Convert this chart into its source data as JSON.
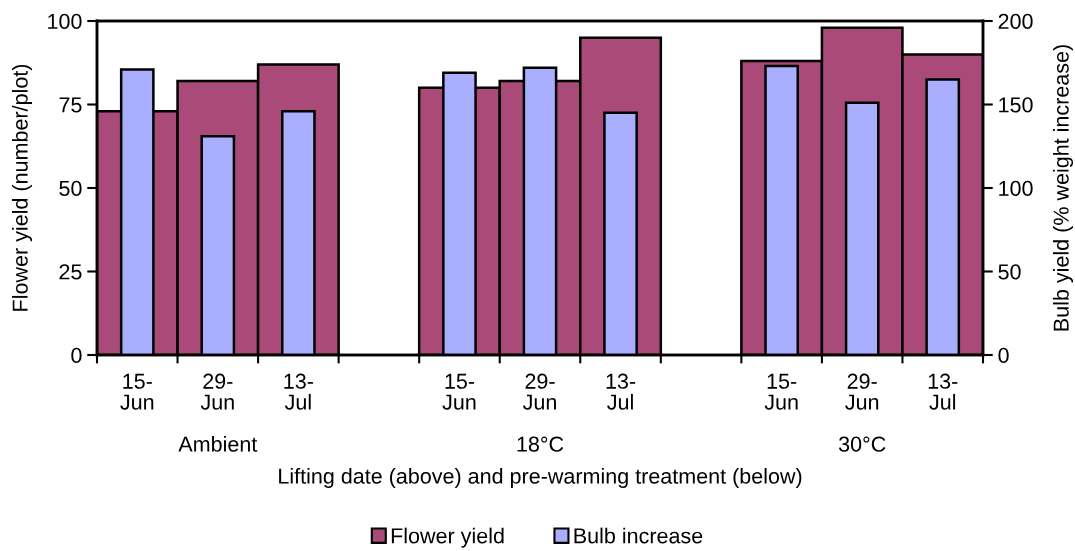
{
  "chart_data": {
    "type": "bar",
    "xlabel": "Lifting date (above) and pre-warming treatment (below)",
    "ylabel": "Flower yield (number/plot)",
    "y2label": "Bulb yield (% weight increase)",
    "categories": [
      "15-\nJun",
      "29-\nJun",
      "13-\nJul",
      null,
      "15-\nJun",
      "29-\nJun",
      "13-\nJul",
      null,
      "15-\nJun",
      "29-\nJun",
      "13-\nJul"
    ],
    "annotations": [
      "Ambient",
      "18°C",
      "30°C"
    ],
    "series": [
      {
        "name": "Flower yield",
        "color": "#a94a78",
        "values": [
          73,
          82,
          87,
          null,
          80,
          82,
          95,
          null,
          88,
          98,
          90
        ]
      },
      {
        "name": "Bulb increase",
        "color": "#a9aeff",
        "axis": "y2",
        "values": [
          171,
          131,
          146,
          null,
          169,
          172,
          145,
          null,
          173,
          151,
          165
        ]
      }
    ],
    "ylim": [
      0,
      100
    ],
    "yticks": [
      0,
      25,
      50,
      75,
      100
    ],
    "y2lim": [
      0,
      200
    ],
    "y2ticks": [
      0,
      50,
      100,
      150,
      200
    ],
    "legend": "bottom"
  }
}
